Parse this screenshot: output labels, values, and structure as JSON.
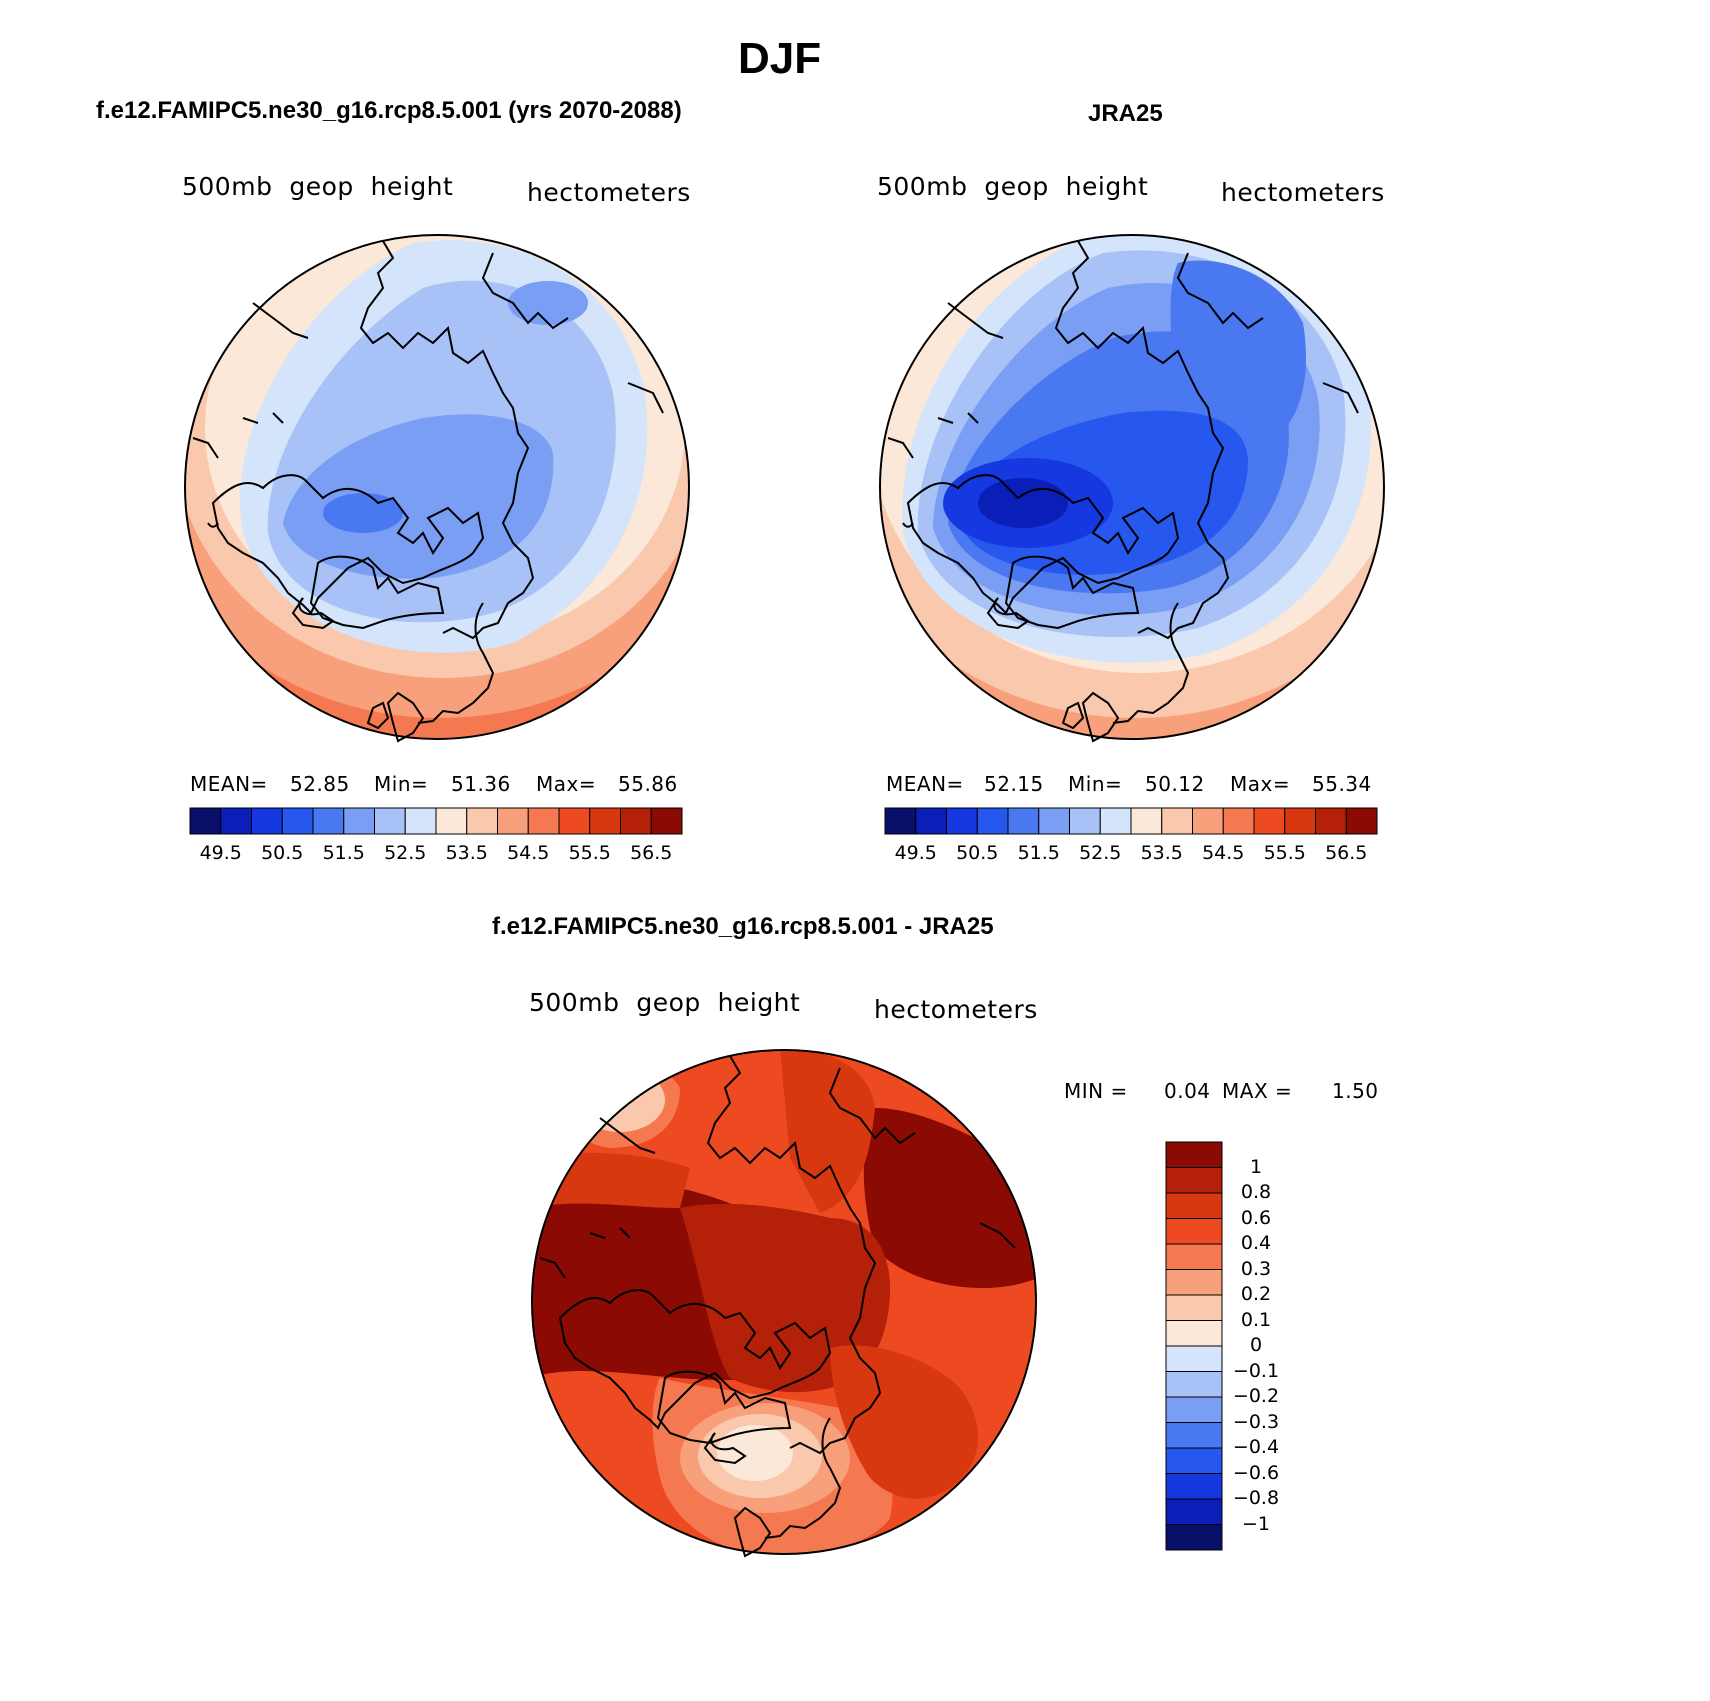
{
  "figure": {
    "season": "DJF",
    "left_title": "f.e12.FAMIPC5.ne30_g16.rcp8.5.001 (yrs 2070-2088)",
    "right_title": "JRA25",
    "diff_title": "f.e12.FAMIPC5.ne30_g16.rcp8.5.001 - JRA25"
  },
  "colors": {
    "abs_scale": [
      "#08106a",
      "#0a1eb8",
      "#1638e0",
      "#2658f0",
      "#4a78f0",
      "#7a9ef4",
      "#a8c2f8",
      "#d4e4fa",
      "#fce8d8",
      "#fac8ac",
      "#f8a07c",
      "#f47850",
      "#ee4a22",
      "#d83810",
      "#b42008",
      "#8c0a04"
    ],
    "diff_scale": [
      "#08106a",
      "#0a1eb8",
      "#1638e0",
      "#2658f0",
      "#4a78f0",
      "#7a9ef4",
      "#a8c2f8",
      "#d4e4fa",
      "#fce8d8",
      "#fac8ac",
      "#f8a07c",
      "#f47850",
      "#ee4a22",
      "#d83810",
      "#b42008",
      "#8c0a04"
    ],
    "coastline": "#000000"
  },
  "chart_data": [
    {
      "type": "heatmap",
      "panel": "model",
      "title": "f.e12.FAMIPC5.ne30_g16.rcp8.5.001 (yrs 2070-2088)",
      "left_string": "500mb  geop  height",
      "right_string": "hectometers",
      "projection": "north-polar-stereographic",
      "stats": {
        "mean_label": "MEAN=",
        "mean": "52.85",
        "min_label": "Min=",
        "min": "51.36",
        "max_label": "Max=",
        "max": "55.86"
      },
      "levels": [
        49.5,
        50.0,
        50.5,
        51.0,
        51.5,
        52.0,
        52.5,
        53.0,
        53.5,
        54.0,
        54.5,
        55.0,
        55.5,
        56.0,
        56.5
      ],
      "tick_labels": [
        "49.5",
        "50.5",
        "51.5",
        "52.5",
        "53.5",
        "54.5",
        "55.5",
        "56.5"
      ],
      "colorbar_orientation": "horizontal"
    },
    {
      "type": "heatmap",
      "panel": "observations",
      "title": "JRA25",
      "left_string": "500mb  geop  height",
      "right_string": "hectometers",
      "projection": "north-polar-stereographic",
      "stats": {
        "mean_label": "MEAN=",
        "mean": "52.15",
        "min_label": "Min=",
        "min": "50.12",
        "max_label": "Max=",
        "max": "55.34"
      },
      "levels": [
        49.5,
        50.0,
        50.5,
        51.0,
        51.5,
        52.0,
        52.5,
        53.0,
        53.5,
        54.0,
        54.5,
        55.0,
        55.5,
        56.0,
        56.5
      ],
      "tick_labels": [
        "49.5",
        "50.5",
        "51.5",
        "52.5",
        "53.5",
        "54.5",
        "55.5",
        "56.5"
      ],
      "colorbar_orientation": "horizontal"
    },
    {
      "type": "heatmap",
      "panel": "difference",
      "title": "f.e12.FAMIPC5.ne30_g16.rcp8.5.001 - JRA25",
      "left_string": "500mb  geop  height",
      "right_string": "hectometers",
      "projection": "north-polar-stereographic",
      "stats": {
        "min_label": "MIN =",
        "min": "0.04",
        "max_label": "MAX =",
        "max": "1.50"
      },
      "levels": [
        -1,
        -0.8,
        -0.6,
        -0.4,
        -0.3,
        -0.2,
        -0.1,
        0,
        0.1,
        0.2,
        0.3,
        0.4,
        0.6,
        0.8,
        1
      ],
      "tick_labels": [
        "1",
        "0.8",
        "0.6",
        "0.4",
        "0.3",
        "0.2",
        "0.1",
        "0",
        "−0.1",
        "−0.2",
        "−0.3",
        "−0.4",
        "−0.6",
        "−0.8",
        "−1"
      ],
      "colorbar_orientation": "vertical"
    }
  ]
}
